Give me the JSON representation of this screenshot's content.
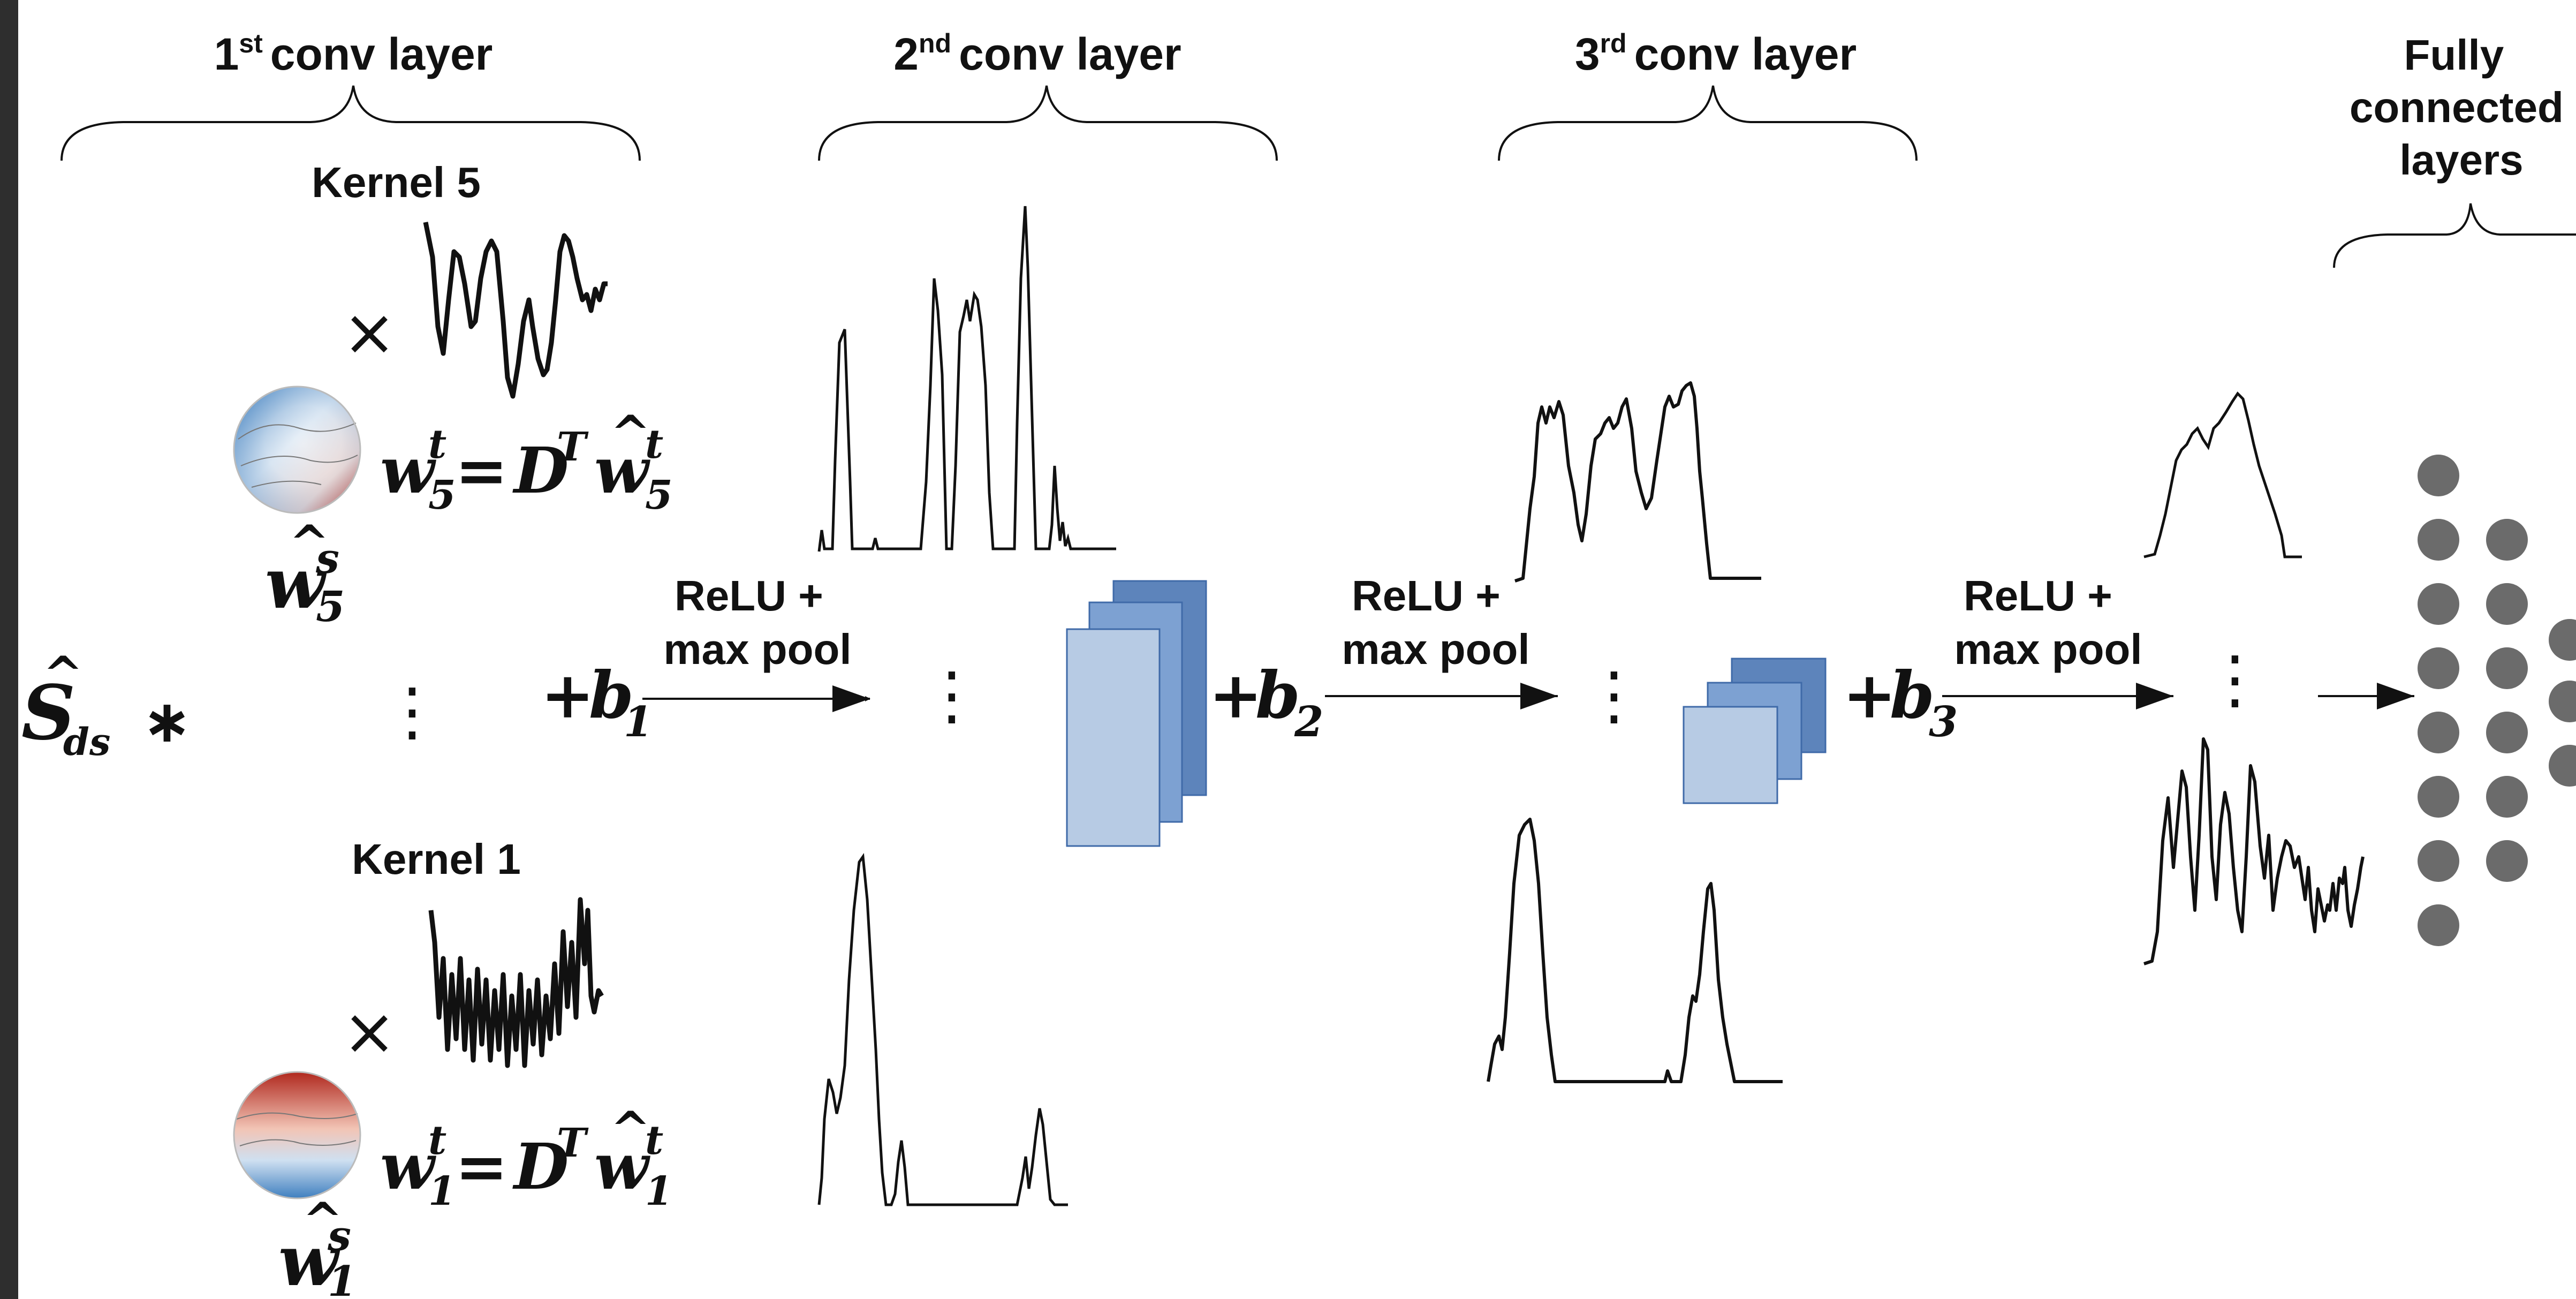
{
  "colors": {
    "frame": "#2e2e2e",
    "background": "#ffffff",
    "ink": "#111111",
    "node": "#6b6b6b",
    "map_dark": "#5d84bb",
    "map_mid": "#7da1d2",
    "map_light": "#b7cbe4",
    "topo_red": "#c0392b",
    "topo_blue": "#3f7fbf"
  },
  "layers": {
    "conv1": {
      "label": "conv layer",
      "ordinal": "1",
      "suffix": "st"
    },
    "conv2": {
      "label": "conv layer",
      "ordinal": "2",
      "suffix": "nd"
    },
    "conv3": {
      "label": "conv layer",
      "ordinal": "3",
      "suffix": "rd"
    },
    "fc": {
      "line1": "Fully",
      "line2": "connected",
      "line3": "layers"
    }
  },
  "kernels": {
    "top": {
      "title": "Kernel 5",
      "times": "×",
      "index": "5"
    },
    "bottom": {
      "title": "Kernel 1",
      "times": "×",
      "index": "1"
    }
  },
  "equation": {
    "w": "w",
    "t": "t",
    "eq": "=",
    "D": "D",
    "T": "T",
    "s": "s",
    "hat": "^"
  },
  "input": {
    "S": "S",
    "hat": "^",
    "sub": "ds",
    "conv": "∗",
    "dots": "⋮"
  },
  "biases": [
    {
      "plus": "+",
      "b": "b",
      "sub": "1"
    },
    {
      "plus": "+",
      "b": "b",
      "sub": "2"
    },
    {
      "plus": "+",
      "b": "b",
      "sub": "3"
    }
  ],
  "arrow_label": {
    "line1": "ReLU +",
    "line2": "max pool"
  },
  "dots": "⋮"
}
